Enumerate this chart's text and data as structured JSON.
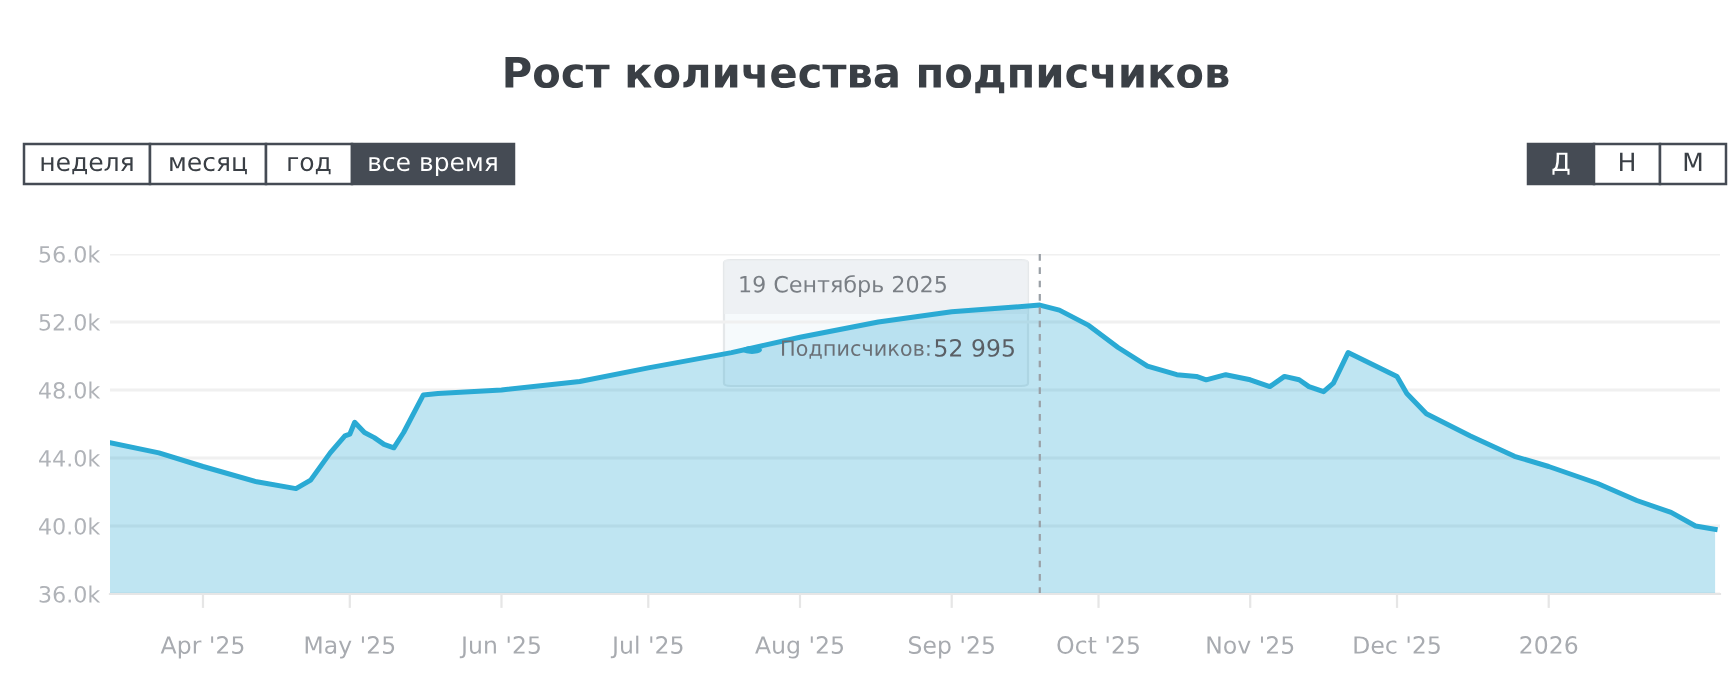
{
  "chart_data": {
    "type": "area",
    "title": "Рост количества подписчиков",
    "x": [
      "2025-03-13",
      "2025-03-23",
      "2025-04-01",
      "2025-04-12",
      "2025-04-20",
      "2025-04-23",
      "2025-04-27",
      "2025-04-30",
      "2025-05-01",
      "2025-05-02",
      "2025-05-04",
      "2025-05-06",
      "2025-05-08",
      "2025-05-10",
      "2025-05-12",
      "2025-05-16",
      "2025-05-19",
      "2025-06-01",
      "2025-06-17",
      "2025-07-01",
      "2025-07-18",
      "2025-08-01",
      "2025-08-17",
      "2025-09-01",
      "2025-09-19",
      "2025-09-23",
      "2025-09-29",
      "2025-10-05",
      "2025-10-11",
      "2025-10-17",
      "2025-10-21",
      "2025-10-23",
      "2025-10-27",
      "2025-11-01",
      "2025-11-05",
      "2025-11-08",
      "2025-11-11",
      "2025-11-13",
      "2025-11-16",
      "2025-11-18",
      "2025-11-20",
      "2025-11-21",
      "2025-11-26",
      "2025-12-01",
      "2025-12-03",
      "2025-12-07",
      "2025-12-16",
      "2025-12-25",
      "2026-01-01",
      "2026-01-11",
      "2026-01-19",
      "2026-01-26",
      "2026-01-31",
      "2026-02-04"
    ],
    "series": [
      {
        "color": "#2aaad4",
        "values": [
          44900,
          44300,
          43500,
          42600,
          42200,
          42700,
          44300,
          45300,
          45400,
          46100,
          45500,
          45200,
          44800,
          44600,
          45500,
          47700,
          47800,
          48000,
          48500,
          49300,
          50200,
          51100,
          52000,
          52600,
          52995,
          52700,
          51800,
          50500,
          49400,
          48900,
          48800,
          48600,
          48900,
          48600,
          48200,
          48800,
          48600,
          48200,
          47900,
          48400,
          49600,
          50200,
          49500,
          48800,
          47800,
          46600,
          45300,
          44100,
          43500,
          42500,
          41500,
          40800,
          40000,
          39800
        ]
      }
    ],
    "xlim": [
      "2025-03-13",
      "2026-02-05"
    ],
    "xticks": [
      {
        "value": "2025-04-01",
        "label": "Apr '25"
      },
      {
        "value": "2025-05-01",
        "label": "May '25"
      },
      {
        "value": "2025-06-01",
        "label": "Jun '25"
      },
      {
        "value": "2025-07-01",
        "label": "Jul '25"
      },
      {
        "value": "2025-08-01",
        "label": "Aug '25"
      },
      {
        "value": "2025-09-01",
        "label": "Sep '25"
      },
      {
        "value": "2025-10-01",
        "label": "Oct '25"
      },
      {
        "value": "2025-11-01",
        "label": "Nov '25"
      },
      {
        "value": "2025-12-01",
        "label": "Dec '25"
      },
      {
        "value": "2026-01-01",
        "label": "2026"
      }
    ],
    "ylim": [
      36000,
      56000
    ],
    "yticks": [
      {
        "value": 36000,
        "label": "36.0k"
      },
      {
        "value": 40000,
        "label": "40.0k"
      },
      {
        "value": 44000,
        "label": "44.0k"
      },
      {
        "value": 48000,
        "label": "48.0k"
      },
      {
        "value": 52000,
        "label": "52.0k"
      },
      {
        "value": 56000,
        "label": "56.0k"
      }
    ],
    "grid": "y",
    "ref_lines": [
      {
        "axis": "x",
        "value": "2025-09-19",
        "color": "#9aa0a6",
        "line_style": "dashed"
      }
    ],
    "annotations": [
      "неделя",
      "месяц",
      "год",
      "все время",
      "Д",
      "Н",
      "М",
      "19 Сентябрь 2025",
      "Подписчиков:",
      "52 995"
    ]
  }
}
